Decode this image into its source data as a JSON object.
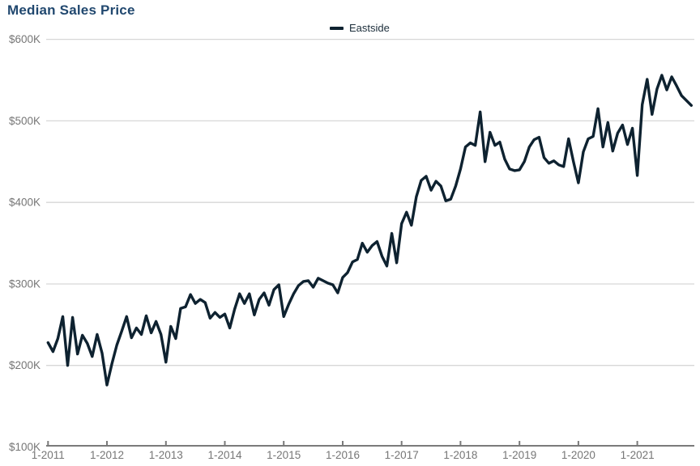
{
  "page": {
    "title": "Median Sales Price"
  },
  "legend": {
    "items": [
      {
        "label": "Eastside",
        "color": "#0e2230"
      }
    ]
  },
  "colors": {
    "title_text": "#21486F",
    "axis_text": "#767676",
    "gridline": "#d7d7d7",
    "axis_line": "#7a7a7a",
    "series_line": "#0e2230",
    "background": "#ffffff"
  },
  "chart_data": {
    "type": "line",
    "title": "Median Sales Price",
    "x_interval": "monthly",
    "x_start": "2011-01",
    "x_end": "2021-12",
    "grid": "horizontal",
    "legend_position": "top-center",
    "ylim": [
      100000,
      600000
    ],
    "x_ticks": [
      "1-2011",
      "1-2012",
      "1-2013",
      "1-2014",
      "1-2015",
      "1-2016",
      "1-2017",
      "1-2018",
      "1-2019",
      "1-2020",
      "1-2021"
    ],
    "y_ticks": [
      {
        "label": "$100K",
        "value": 100000
      },
      {
        "label": "$200K",
        "value": 200000
      },
      {
        "label": "$300K",
        "value": 300000
      },
      {
        "label": "$400K",
        "value": 400000
      },
      {
        "label": "$500K",
        "value": 500000
      },
      {
        "label": "$600K",
        "value": 600000
      }
    ],
    "series": [
      {
        "name": "Eastside",
        "color": "#0e2230",
        "unit": "USD",
        "values": [
          228000,
          217000,
          233000,
          260000,
          200000,
          259000,
          214000,
          237000,
          227000,
          211000,
          238000,
          215000,
          176000,
          202000,
          225000,
          242000,
          260000,
          234000,
          246000,
          238000,
          261000,
          240000,
          254000,
          238000,
          204000,
          248000,
          233000,
          270000,
          272000,
          287000,
          276000,
          281000,
          277000,
          258000,
          265000,
          259000,
          263000,
          246000,
          269000,
          288000,
          276000,
          288000,
          262000,
          281000,
          289000,
          274000,
          293000,
          299000,
          260000,
          275000,
          288000,
          298000,
          303000,
          304000,
          296000,
          307000,
          304000,
          301000,
          299000,
          289000,
          308000,
          314000,
          327000,
          330000,
          350000,
          339000,
          347000,
          352000,
          334000,
          322000,
          362000,
          326000,
          374000,
          388000,
          372000,
          407000,
          427000,
          432000,
          415000,
          426000,
          420000,
          402000,
          404000,
          420000,
          441000,
          468000,
          473000,
          470000,
          511000,
          450000,
          486000,
          470000,
          474000,
          453000,
          441000,
          439000,
          440000,
          450000,
          468000,
          477000,
          480000,
          455000,
          448000,
          451000,
          446000,
          444000,
          478000,
          450000,
          424000,
          462000,
          478000,
          481000,
          515000,
          468000,
          498000,
          463000,
          485000,
          495000,
          471000,
          491000,
          433000,
          520000,
          551000,
          508000,
          539000,
          556000,
          538000,
          554000,
          543000,
          531000,
          525000,
          519000
        ]
      }
    ]
  }
}
